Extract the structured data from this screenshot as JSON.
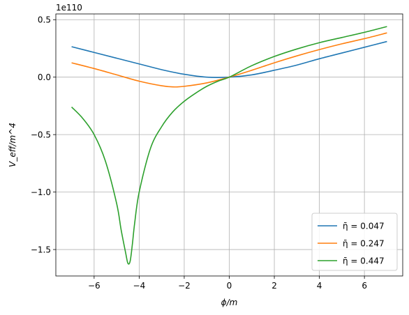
{
  "chart_data": {
    "type": "line",
    "title": "",
    "xlabel": "ϕ/m",
    "ylabel": "V_eff/m^4",
    "offset_text": "1e110",
    "xlim": [
      -7.7,
      7.7
    ],
    "ylim": [
      -1.73,
      0.55
    ],
    "x_ticks": [
      -6,
      -4,
      -2,
      0,
      2,
      4,
      6
    ],
    "x_tick_labels": [
      "−6",
      "−4",
      "−2",
      "0",
      "2",
      "4",
      "6"
    ],
    "y_ticks": [
      -1.5,
      -1.0,
      -0.5,
      0.0,
      0.5
    ],
    "y_tick_labels": [
      "−1.5",
      "−1.0",
      "−0.5",
      "0.0",
      "0.5"
    ],
    "grid": true,
    "legend_position": "lower-right",
    "legend": [
      "η̄ = 0.047",
      "η̄ = 0.247",
      "η̄ = 0.447"
    ],
    "series": [
      {
        "name": "η̄ = 0.047",
        "color": "#1f77b4",
        "x": [
          -7,
          -6,
          -5,
          -4,
          -3,
          -2,
          -1,
          0,
          1,
          2,
          3,
          4,
          5,
          6,
          7
        ],
        "y": [
          0.265,
          0.215,
          0.165,
          0.115,
          0.065,
          0.025,
          0.0,
          0.0,
          0.02,
          0.06,
          0.105,
          0.16,
          0.21,
          0.26,
          0.31
        ]
      },
      {
        "name": "η̄ = 0.247",
        "color": "#ff7f0e",
        "x": [
          -7,
          -6,
          -5,
          -4,
          -3,
          -2.5,
          -2,
          -1,
          0,
          1,
          2,
          3,
          4,
          5,
          6,
          7
        ],
        "y": [
          0.125,
          0.075,
          0.02,
          -0.035,
          -0.075,
          -0.085,
          -0.08,
          -0.05,
          0.0,
          0.06,
          0.125,
          0.185,
          0.24,
          0.29,
          0.335,
          0.385
        ]
      },
      {
        "name": "η̄ = 0.447",
        "color": "#2ca02c",
        "x": [
          -7,
          -6.5,
          -6,
          -5.5,
          -5,
          -4.8,
          -4.6,
          -4.5,
          -4.4,
          -4.3,
          -4.2,
          -4,
          -3.5,
          -3,
          -2.5,
          -2,
          -1.5,
          -1,
          -0.5,
          0,
          1,
          2,
          3,
          4,
          5,
          6,
          7
        ],
        "y": [
          -0.26,
          -0.36,
          -0.5,
          -0.73,
          -1.1,
          -1.33,
          -1.53,
          -1.62,
          -1.6,
          -1.45,
          -1.27,
          -1.0,
          -0.62,
          -0.43,
          -0.3,
          -0.21,
          -0.14,
          -0.08,
          -0.035,
          0.0,
          0.1,
          0.18,
          0.245,
          0.3,
          0.345,
          0.39,
          0.44
        ]
      }
    ]
  }
}
